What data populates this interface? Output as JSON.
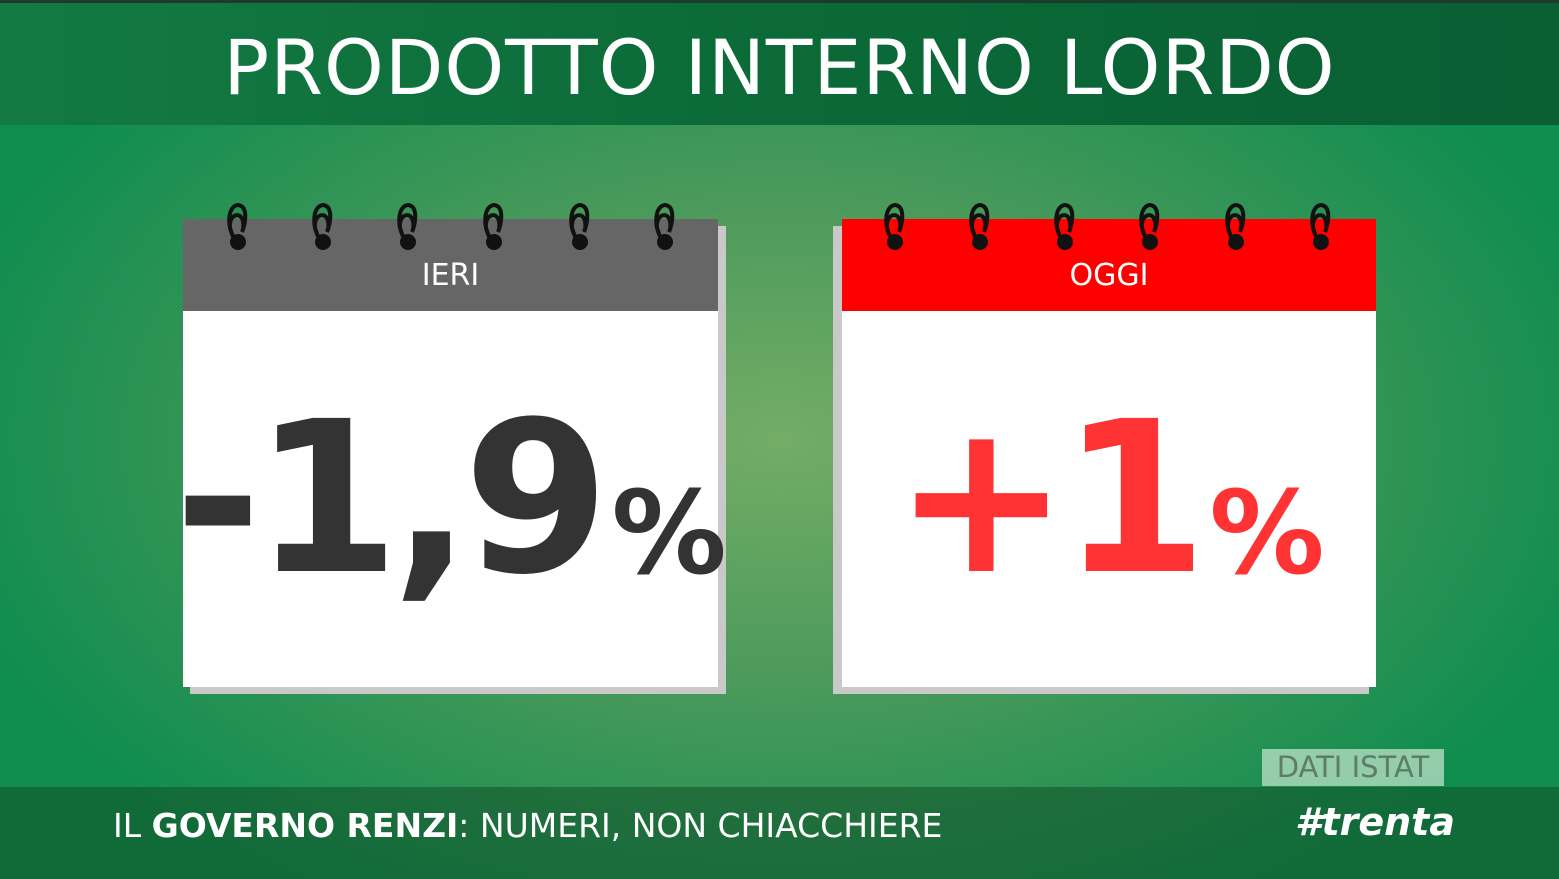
{
  "header": {
    "title": "PRODOTTO INTERNO LORDO"
  },
  "calendars": [
    {
      "label": "IERI",
      "value": "-1,9",
      "unit": "%"
    },
    {
      "label": "OGGI",
      "value": "+1",
      "unit": "%"
    }
  ],
  "source": "DATI ISTAT",
  "footer": {
    "prefix": "IL ",
    "emphasis": "GOVERNO RENZI",
    "suffix": ": NUMERI, NON CHIACCHIERE",
    "hashtag": "#trenta"
  }
}
